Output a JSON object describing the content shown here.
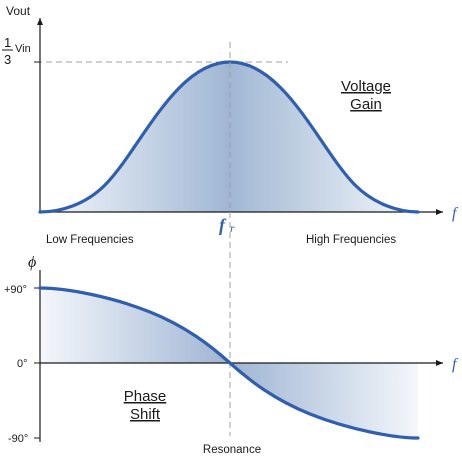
{
  "colors": {
    "curve": "#2f5fae",
    "axis": "#1a1a1a",
    "dashed": "#a0a0a0",
    "freq_symbol": "#2f5fae",
    "fill_dark": "#9fb5d3",
    "fill_light": "#f2f5fa"
  },
  "top_chart": {
    "y_axis_label": "Vout",
    "gain_fraction": {
      "numerator": "1",
      "denominator": "3",
      "suffix": "Vin"
    },
    "x_axis_symbol": "f",
    "resonance_symbol": "f",
    "resonance_subscript": "r",
    "title_line1": "Voltage",
    "title_line2": "Gain",
    "low_label": "Low Frequencies",
    "high_label": "High Frequencies",
    "curve_shape": "bell",
    "peak_value": "1/3 Vin"
  },
  "bottom_chart": {
    "y_axis_symbol": "ϕ",
    "x_axis_symbol": "f",
    "tick_labels": [
      "+90°",
      "0°",
      "-90°"
    ],
    "title_line1": "Phase",
    "title_line2": "Shift",
    "resonance_label": "Resonance",
    "curve_shape": "phase-shift from +90° to -90°",
    "start_phase_deg": 90,
    "resonance_phase_deg": 0,
    "end_phase_deg": -90
  }
}
